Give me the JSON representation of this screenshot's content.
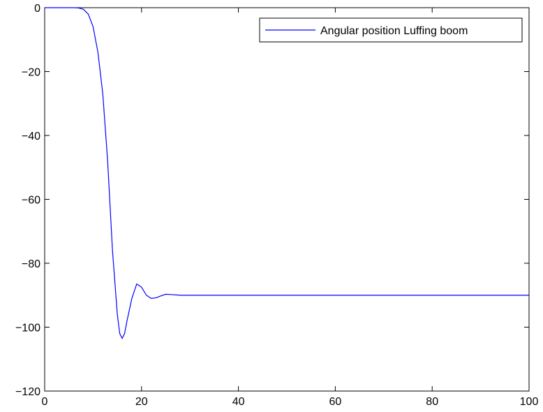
{
  "chart_data": {
    "type": "line",
    "x": [
      0,
      2,
      4,
      6,
      7,
      8,
      9,
      10,
      11,
      12,
      13,
      14,
      15,
      15.5,
      16,
      16.5,
      17,
      18,
      19,
      20,
      21,
      22,
      23,
      24,
      25,
      26,
      28,
      30,
      40,
      60,
      80,
      100
    ],
    "series": [
      {
        "name": "Angular position Luffing boom",
        "color": "#0000ff",
        "values": [
          0,
          0,
          0,
          0,
          -0.1,
          -0.5,
          -2,
          -6,
          -14,
          -27,
          -48,
          -76,
          -96,
          -102,
          -103.5,
          -102,
          -98,
          -91,
          -86.5,
          -87.5,
          -90,
          -91,
          -90.8,
          -90.2,
          -89.7,
          -89.8,
          -90,
          -90,
          -90,
          -90,
          -90,
          -90
        ]
      }
    ],
    "xlim": [
      0,
      100
    ],
    "xticks": [
      0,
      20,
      40,
      60,
      80,
      100
    ],
    "ylim": [
      -120,
      0
    ],
    "yticks": [
      {
        "value": -120,
        "label": "−120"
      },
      {
        "value": -100,
        "label": "−100"
      },
      {
        "value": -80,
        "label": "−80"
      },
      {
        "value": -60,
        "label": "−60"
      },
      {
        "value": -40,
        "label": "−40"
      },
      {
        "value": -20,
        "label": "−20"
      },
      0
    ],
    "grid": false,
    "legend": "northeast"
  }
}
